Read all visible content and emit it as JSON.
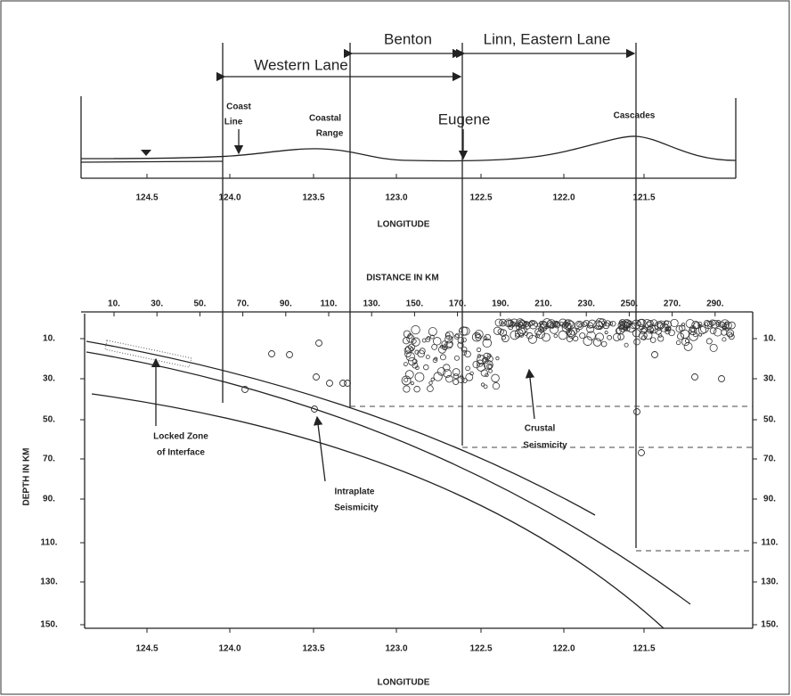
{
  "top_panel": {
    "regions": [
      "Benton",
      "Linn, Eastern Lane",
      "Western Lane"
    ],
    "features": [
      "Coast",
      "Line",
      "Coastal",
      "Range",
      "Eugene",
      "Cascades"
    ],
    "longitude_ticks": [
      "124.5",
      "124.0",
      "123.5",
      "123.0",
      "122.5",
      "122.0",
      "121.5"
    ],
    "axis_label": "LONGITUDE"
  },
  "bottom_panel": {
    "distance_label": "DISTANCE IN KM",
    "distance_ticks": [
      "10.",
      "30.",
      "50.",
      "70.",
      "90.",
      "110.",
      "130.",
      "150.",
      "170.",
      "190.",
      "210.",
      "230.",
      "250.",
      "270.",
      "290."
    ],
    "depth_label": "DEPTH IN KM",
    "depth_ticks": [
      "10.",
      "30.",
      "50.",
      "70.",
      "90.",
      "110.",
      "130.",
      "150."
    ],
    "longitude_ticks": [
      "124.5",
      "124.0",
      "123.5",
      "123.0",
      "122.5",
      "122.0",
      "121.5"
    ],
    "axis_label": "LONGITUDE",
    "annotations": [
      "Locked Zone",
      "of Interface",
      "Intraplate",
      "Seismicity",
      "Crustal",
      "Seismicity"
    ]
  }
}
